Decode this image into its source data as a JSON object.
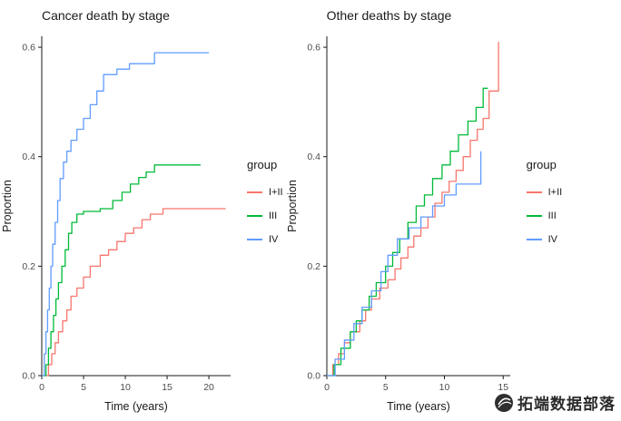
{
  "watermark": {
    "text": "拓端数据部落"
  },
  "chart_data": [
    {
      "type": "line",
      "subtype": "step",
      "title": "Cancer death by stage",
      "xlabel": "Time (years)",
      "ylabel": "Proportion",
      "xlim": [
        0,
        22.6
      ],
      "ylim": [
        0,
        0.62
      ],
      "xticks": [
        0,
        5,
        10,
        15,
        20
      ],
      "yticks": [
        0,
        0.2,
        0.4,
        0.6
      ],
      "grid": false,
      "legend_title": "group",
      "legend_position": "right",
      "series": [
        {
          "name": "I+II",
          "color": "#F8766D",
          "points": [
            [
              0,
              0
            ],
            [
              0.8,
              0.02
            ],
            [
              1.2,
              0.04
            ],
            [
              1.6,
              0.06
            ],
            [
              2.0,
              0.08
            ],
            [
              2.5,
              0.1
            ],
            [
              3.0,
              0.12
            ],
            [
              3.5,
              0.145
            ],
            [
              4.2,
              0.16
            ],
            [
              5.0,
              0.18
            ],
            [
              5.8,
              0.2
            ],
            [
              7.0,
              0.22
            ],
            [
              8.0,
              0.23
            ],
            [
              9.0,
              0.245
            ],
            [
              10.0,
              0.26
            ],
            [
              11.0,
              0.27
            ],
            [
              12.0,
              0.285
            ],
            [
              13.0,
              0.295
            ],
            [
              14.5,
              0.305
            ],
            [
              22.0,
              0.305
            ]
          ]
        },
        {
          "name": "III",
          "color": "#00BA38",
          "points": [
            [
              0,
              0
            ],
            [
              0.5,
              0.02
            ],
            [
              0.8,
              0.05
            ],
            [
              1.1,
              0.08
            ],
            [
              1.4,
              0.11
            ],
            [
              1.7,
              0.14
            ],
            [
              2.0,
              0.17
            ],
            [
              2.4,
              0.2
            ],
            [
              2.8,
              0.23
            ],
            [
              3.2,
              0.26
            ],
            [
              3.6,
              0.28
            ],
            [
              4.2,
              0.295
            ],
            [
              5.0,
              0.3
            ],
            [
              7.0,
              0.305
            ],
            [
              8.5,
              0.32
            ],
            [
              9.6,
              0.335
            ],
            [
              10.6,
              0.35
            ],
            [
              11.6,
              0.362
            ],
            [
              12.5,
              0.372
            ],
            [
              13.5,
              0.385
            ],
            [
              19.0,
              0.385
            ]
          ]
        },
        {
          "name": "IV",
          "color": "#619CFF",
          "points": [
            [
              0,
              0
            ],
            [
              0.3,
              0.04
            ],
            [
              0.5,
              0.08
            ],
            [
              0.7,
              0.12
            ],
            [
              0.9,
              0.16
            ],
            [
              1.1,
              0.2
            ],
            [
              1.3,
              0.24
            ],
            [
              1.6,
              0.28
            ],
            [
              1.9,
              0.32
            ],
            [
              2.2,
              0.36
            ],
            [
              2.6,
              0.39
            ],
            [
              3.0,
              0.41
            ],
            [
              3.5,
              0.43
            ],
            [
              4.2,
              0.45
            ],
            [
              5.0,
              0.47
            ],
            [
              5.8,
              0.495
            ],
            [
              6.6,
              0.52
            ],
            [
              7.4,
              0.55
            ],
            [
              9.0,
              0.56
            ],
            [
              10.5,
              0.57
            ],
            [
              13.5,
              0.59
            ],
            [
              20.0,
              0.59
            ]
          ]
        }
      ]
    },
    {
      "type": "line",
      "subtype": "step",
      "title": "Other deaths by stage",
      "xlabel": "Time (years)",
      "ylabel": "Proportion",
      "xlim": [
        0,
        15.6
      ],
      "ylim": [
        0,
        0.62
      ],
      "xticks": [
        0,
        5,
        10,
        15
      ],
      "yticks": [
        0,
        0.2,
        0.4,
        0.6
      ],
      "grid": false,
      "legend_title": "group",
      "legend_position": "right",
      "series": [
        {
          "name": "I+II",
          "color": "#F8766D",
          "points": [
            [
              0,
              0
            ],
            [
              0.5,
              0.02
            ],
            [
              1.0,
              0.04
            ],
            [
              1.5,
              0.06
            ],
            [
              2.0,
              0.08
            ],
            [
              2.8,
              0.1
            ],
            [
              3.3,
              0.12
            ],
            [
              3.8,
              0.14
            ],
            [
              4.5,
              0.16
            ],
            [
              5.2,
              0.175
            ],
            [
              5.8,
              0.195
            ],
            [
              6.3,
              0.215
            ],
            [
              6.9,
              0.235
            ],
            [
              7.4,
              0.255
            ],
            [
              8.0,
              0.27
            ],
            [
              8.6,
              0.29
            ],
            [
              9.2,
              0.315
            ],
            [
              9.8,
              0.335
            ],
            [
              10.4,
              0.355
            ],
            [
              11.0,
              0.375
            ],
            [
              11.6,
              0.4
            ],
            [
              12.2,
              0.43
            ],
            [
              12.8,
              0.45
            ],
            [
              13.3,
              0.47
            ],
            [
              13.8,
              0.52
            ],
            [
              14.4,
              0.52
            ],
            [
              14.6,
              0.61
            ]
          ]
        },
        {
          "name": "III",
          "color": "#00BA38",
          "points": [
            [
              0,
              0
            ],
            [
              0.6,
              0.02
            ],
            [
              1.2,
              0.05
            ],
            [
              2.0,
              0.08
            ],
            [
              2.5,
              0.1
            ],
            [
              3.0,
              0.12
            ],
            [
              3.6,
              0.145
            ],
            [
              4.2,
              0.17
            ],
            [
              5.0,
              0.2
            ],
            [
              5.6,
              0.225
            ],
            [
              6.2,
              0.25
            ],
            [
              6.9,
              0.28
            ],
            [
              7.6,
              0.31
            ],
            [
              8.3,
              0.33
            ],
            [
              9.0,
              0.36
            ],
            [
              9.8,
              0.385
            ],
            [
              10.5,
              0.41
            ],
            [
              11.2,
              0.44
            ],
            [
              12.0,
              0.465
            ],
            [
              12.7,
              0.49
            ],
            [
              13.3,
              0.525
            ],
            [
              13.7,
              0.525
            ]
          ]
        },
        {
          "name": "IV",
          "color": "#619CFF",
          "points": [
            [
              0,
              0
            ],
            [
              0.7,
              0.03
            ],
            [
              1.5,
              0.065
            ],
            [
              2.3,
              0.095
            ],
            [
              3.0,
              0.125
            ],
            [
              3.8,
              0.155
            ],
            [
              4.6,
              0.19
            ],
            [
              5.2,
              0.22
            ],
            [
              6.0,
              0.25
            ],
            [
              7.0,
              0.27
            ],
            [
              8.0,
              0.29
            ],
            [
              9.0,
              0.31
            ],
            [
              10.0,
              0.33
            ],
            [
              11.0,
              0.35
            ],
            [
              12.8,
              0.35
            ],
            [
              13.1,
              0.41
            ]
          ]
        }
      ]
    }
  ]
}
